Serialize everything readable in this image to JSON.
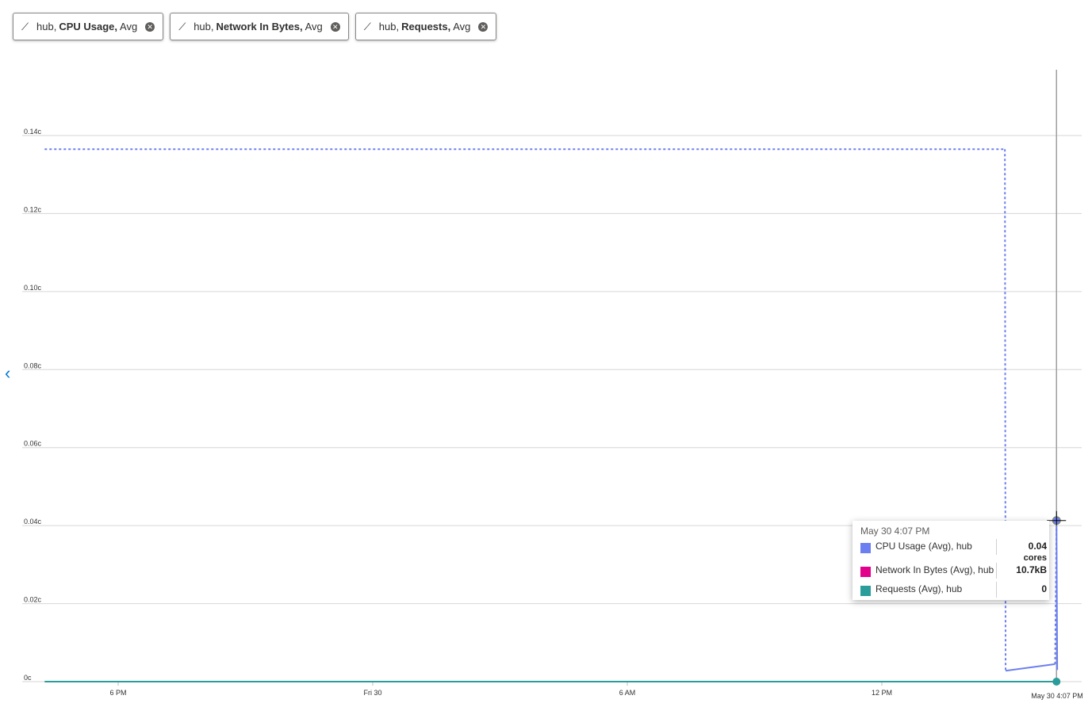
{
  "pills": [
    {
      "prefix": "hub,",
      "metric": "CPU Usage,",
      "agg": "Avg",
      "icon": "line-chart-icon"
    },
    {
      "prefix": "hub,",
      "metric": "Network In Bytes,",
      "agg": "Avg",
      "icon": "line-chart-icon"
    },
    {
      "prefix": "hub,",
      "metric": "Requests,",
      "agg": "Avg",
      "icon": "line-chart-icon"
    }
  ],
  "chart_data": {
    "type": "line",
    "ylim": [
      0,
      0.14
    ],
    "y_ticks": [
      {
        "v": 0,
        "label": "0c"
      },
      {
        "v": 0.02,
        "label": "0.02c"
      },
      {
        "v": 0.04,
        "label": "0.04c"
      },
      {
        "v": 0.06,
        "label": "0.06c"
      },
      {
        "v": 0.08,
        "label": "0.08c"
      },
      {
        "v": 0.1,
        "label": "0.10c"
      },
      {
        "v": 0.12,
        "label": "0.12c"
      },
      {
        "v": 0.14,
        "label": "0.14c"
      }
    ],
    "xlim": [
      "May 29 16:16",
      "May 30 16:13"
    ],
    "x_ticks": [
      {
        "t": "May 29 18:00",
        "label": "6 PM"
      },
      {
        "t": "May 30 00:00",
        "label": "Fri 30"
      },
      {
        "t": "May 30 06:00",
        "label": "6 AM"
      },
      {
        "t": "May 30 12:00",
        "label": "12 PM"
      }
    ],
    "x_end_label": "May 30 4:07 PM",
    "grid": true,
    "series": [
      {
        "name": "CPU Usage (Avg), hub",
        "color": "#6b7ff0",
        "points": [
          {
            "t": "May 29 16:16",
            "v": 0.1365,
            "dotted": true
          },
          {
            "t": "May 30 14:54",
            "v": 0.1365,
            "dotted": true
          },
          {
            "t": "May 30 14:55",
            "v": 0.0028
          },
          {
            "t": "May 30 16:05",
            "v": 0.0045,
            "dotted": true
          },
          {
            "t": "May 30 16:07",
            "v": 0.04
          },
          {
            "t": "May 30 16:08",
            "v": 0.003
          }
        ]
      },
      {
        "name": "Requests (Avg), hub",
        "color": "#2a9d9a",
        "points": [
          {
            "t": "May 29 16:16",
            "v": 0
          },
          {
            "t": "May 30 16:07",
            "v": 0
          }
        ]
      }
    ],
    "cursor": "May 30 16:07"
  },
  "tooltip": {
    "time": "May 30 4:07 PM",
    "rows": [
      {
        "label": "CPU Usage (Avg), hub",
        "value": "0.04",
        "unit": "cores",
        "color": "#6b7ff0"
      },
      {
        "label": "Network In Bytes (Avg), hub",
        "value": "10.7kB",
        "color": "#e3008c"
      },
      {
        "label": "Requests (Avg), hub",
        "value": "0",
        "color": "#2a9d9a"
      }
    ]
  }
}
